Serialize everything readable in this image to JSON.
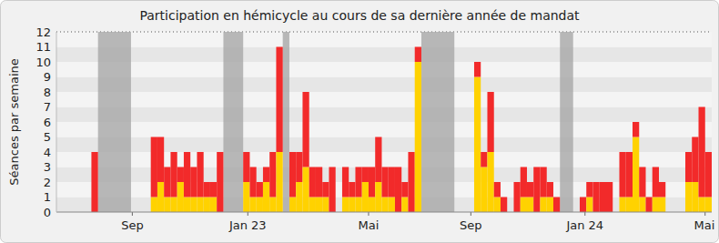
{
  "chart_data": {
    "type": "bar",
    "stacked": true,
    "grid": true,
    "title": "Participation en hémicycle au cours de sa dernière année de mandat",
    "y_label": "Séances par semaine",
    "x": [
      5,
      14,
      15,
      16,
      17,
      18,
      19,
      20,
      21,
      22,
      23,
      24,
      28,
      29,
      30,
      31,
      32,
      33,
      35,
      36,
      37,
      38,
      39,
      40,
      41,
      43,
      44,
      45,
      46,
      47,
      48,
      49,
      50,
      51,
      52,
      53,
      54,
      63,
      64,
      65,
      66,
      67,
      69,
      70,
      71,
      72,
      73,
      74,
      75,
      79,
      80,
      81,
      82,
      83,
      85,
      86,
      87,
      88,
      89,
      90,
      91,
      95,
      96,
      97,
      98
    ],
    "series": [
      {
        "color": "#ffd200",
        "values": [
          0,
          1,
          2,
          1,
          1,
          2,
          1,
          1,
          1,
          1,
          1,
          0,
          2,
          1,
          1,
          2,
          1,
          4,
          1,
          2,
          3,
          1,
          1,
          1,
          0,
          1,
          1,
          1,
          2,
          1,
          2,
          1,
          1,
          0,
          1,
          0,
          10,
          9,
          3,
          4,
          1,
          0,
          0,
          1,
          1,
          0,
          1,
          1,
          0,
          0,
          1,
          0,
          0,
          0,
          1,
          1,
          5,
          1,
          0,
          1,
          1,
          2,
          2,
          1,
          1
        ]
      },
      {
        "color": "#f22a2a",
        "values": [
          4,
          4,
          3,
          2,
          3,
          1,
          3,
          2,
          3,
          1,
          1,
          4,
          2,
          2,
          1,
          1,
          3,
          7,
          3,
          2,
          5,
          2,
          2,
          1,
          3,
          2,
          1,
          2,
          1,
          2,
          3,
          2,
          2,
          3,
          1,
          4,
          1,
          1,
          1,
          4,
          1,
          1,
          2,
          2,
          1,
          3,
          2,
          1,
          1,
          1,
          1,
          2,
          2,
          2,
          3,
          3,
          1,
          2,
          1,
          2,
          1,
          2,
          3,
          6,
          3
        ]
      }
    ],
    "shaded_ranges": [
      [
        6,
        11
      ],
      [
        25,
        28
      ],
      [
        34,
        35
      ],
      [
        55,
        60
      ],
      [
        76,
        78
      ]
    ],
    "xlim": [
      -0.3,
      99
    ],
    "xticks": [
      {
        "value": 11.2,
        "label": "Sep"
      },
      {
        "value": 28.7,
        "label": "Jan 23"
      },
      {
        "value": 47,
        "label": "Mai"
      },
      {
        "value": 62.5,
        "label": "Sep"
      },
      {
        "value": 79.8,
        "label": "Jan 24"
      },
      {
        "value": 98,
        "label": "Mai"
      }
    ],
    "ylim": [
      0,
      12
    ],
    "yticks": [
      0,
      1,
      2,
      3,
      4,
      5,
      6,
      7,
      8,
      9,
      10,
      11,
      12
    ]
  }
}
